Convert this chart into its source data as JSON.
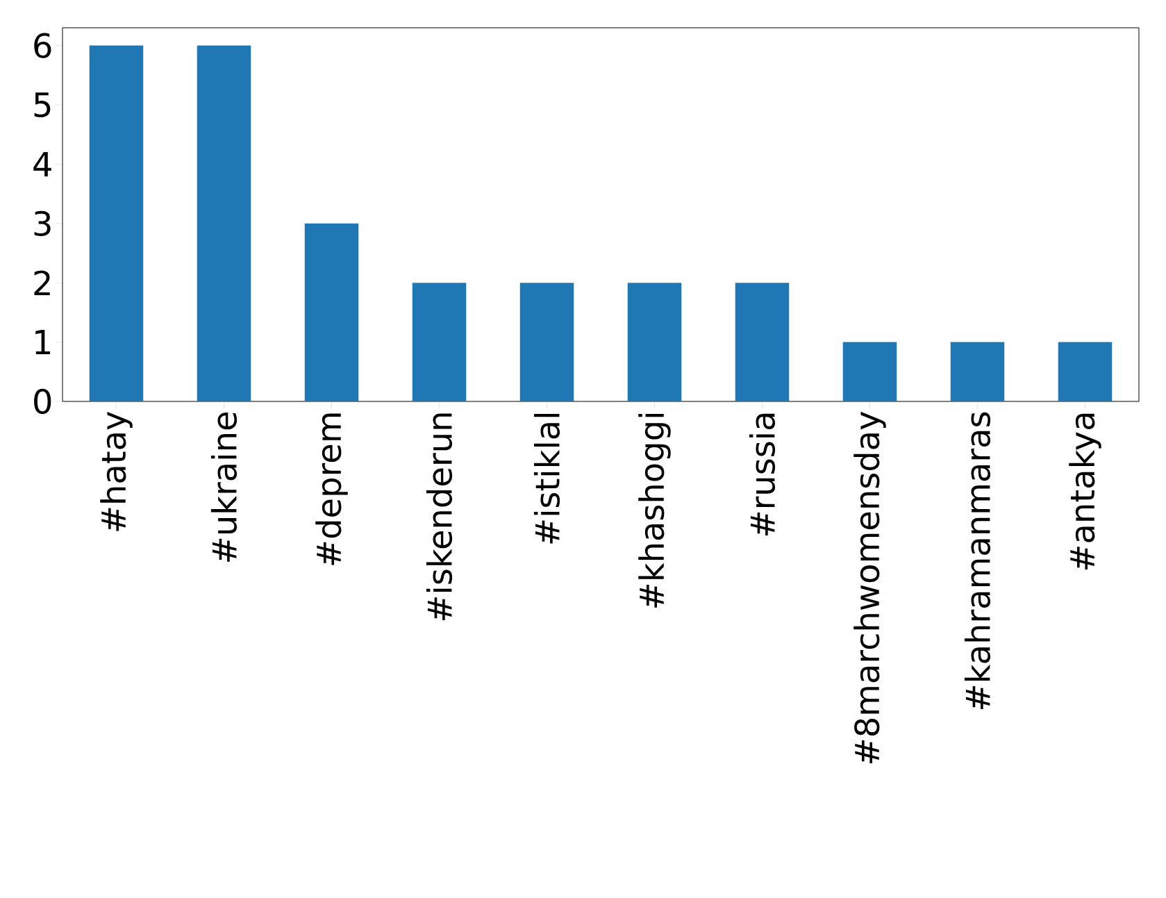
{
  "chart_data": {
    "type": "bar",
    "categories": [
      "#hatay",
      "#ukraine",
      "#deprem",
      "#iskenderun",
      "#istiklal",
      "#khashoggi",
      "#russia",
      "#8marchwomensday",
      "#kahramanmaras",
      "#antakya"
    ],
    "values": [
      6,
      6,
      3,
      2,
      2,
      2,
      2,
      1,
      1,
      1
    ],
    "color": "#1f77b4",
    "ylim": [
      0,
      6.3
    ],
    "yticks": [
      0,
      1,
      2,
      3,
      4,
      5,
      6
    ]
  }
}
